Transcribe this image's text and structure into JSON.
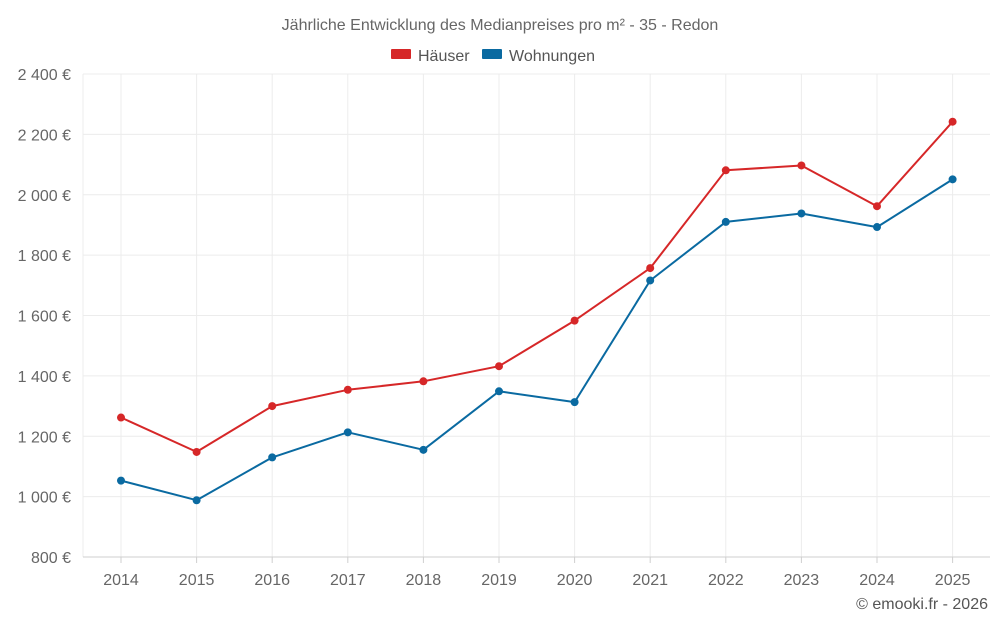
{
  "chart_data": {
    "type": "line",
    "title": "Jährliche Entwicklung des Medianpreises pro m² - 35 - Redon",
    "categories": [
      "2014",
      "2015",
      "2016",
      "2017",
      "2018",
      "2019",
      "2020",
      "2021",
      "2022",
      "2023",
      "2024",
      "2025"
    ],
    "series": [
      {
        "name": "Häuser",
        "color": "#d62728",
        "values": [
          1262,
          1148,
          1300,
          1354,
          1382,
          1432,
          1583,
          1757,
          2081,
          2097,
          1962,
          2242
        ]
      },
      {
        "name": "Wohnungen",
        "color": "#0a6aa1",
        "values": [
          1053,
          988,
          1130,
          1213,
          1155,
          1349,
          1313,
          1716,
          1910,
          1938,
          1893,
          2051
        ]
      }
    ],
    "ylim": [
      800,
      2400
    ],
    "yticks": [
      800,
      1000,
      1200,
      1400,
      1600,
      1800,
      2000,
      2200,
      2400
    ],
    "ytick_labels": [
      "800 €",
      "1 000 €",
      "1 200 €",
      "1 400 €",
      "1 600 €",
      "1 800 €",
      "2 000 €",
      "2 200 €",
      "2 400 €"
    ],
    "xlabel": "",
    "ylabel": "",
    "grid": true,
    "legend_position": "top-center"
  },
  "credit": "© emooki.fr - 2026"
}
